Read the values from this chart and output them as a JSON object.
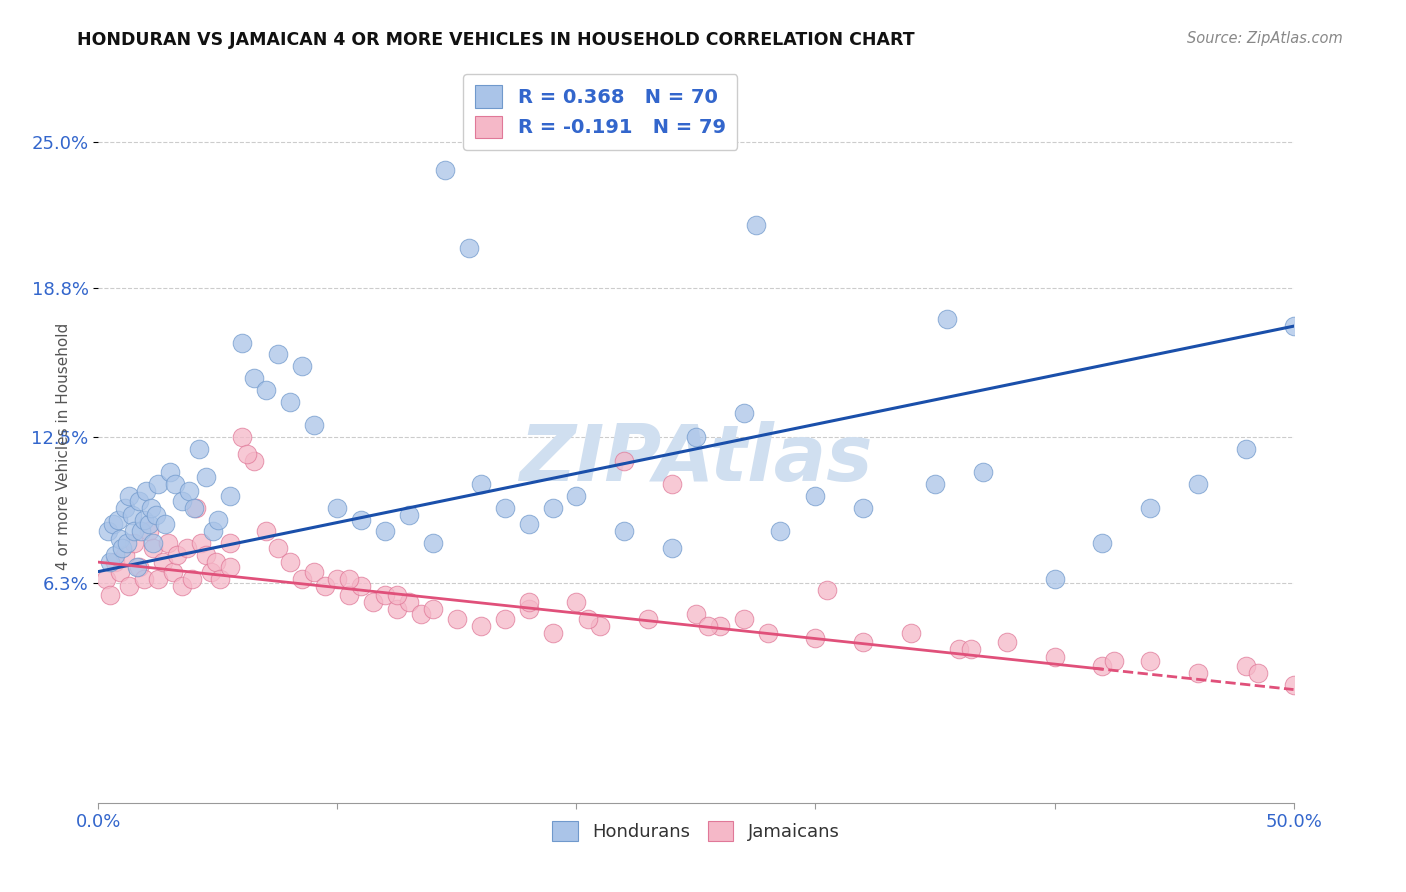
{
  "title": "HONDURAN VS JAMAICAN 4 OR MORE VEHICLES IN HOUSEHOLD CORRELATION CHART",
  "source": "Source: ZipAtlas.com",
  "ylabel": "4 or more Vehicles in Household",
  "ytick_values": [
    25.0,
    18.8,
    12.5,
    6.3
  ],
  "ytick_labels": [
    "25.0%",
    "18.8%",
    "12.5%",
    "6.3%"
  ],
  "xmin": 0.0,
  "xmax": 50.0,
  "ymin": -3.0,
  "ymax": 28.0,
  "honduran_fill": "#aac4e8",
  "honduran_edge": "#7099cc",
  "jamaican_fill": "#f5b8c8",
  "jamaican_edge": "#e07898",
  "honduran_line_color": "#1a4faa",
  "jamaican_line_color": "#e0507a",
  "grid_color": "#cccccc",
  "watermark_color": "#d0dff0",
  "hon_line_x0": 0.0,
  "hon_line_y0": 6.8,
  "hon_line_x1": 50.0,
  "hon_line_y1": 17.2,
  "jam_line_x0": 0.0,
  "jam_line_y0": 7.2,
  "jam_line_x1": 50.0,
  "jam_line_y1": 1.8,
  "jam_solid_end_x": 42.0,
  "scatter_size": 180,
  "scatter_alpha": 0.75,
  "hon_scatter_x": [
    0.4,
    0.5,
    0.6,
    0.7,
    0.8,
    0.9,
    1.0,
    1.1,
    1.2,
    1.3,
    1.4,
    1.5,
    1.6,
    1.7,
    1.8,
    1.9,
    2.0,
    2.1,
    2.2,
    2.3,
    2.4,
    2.5,
    2.8,
    3.0,
    3.2,
    3.5,
    3.8,
    4.0,
    4.2,
    4.5,
    4.8,
    5.0,
    5.5,
    6.0,
    6.5,
    7.0,
    7.5,
    8.0,
    8.5,
    9.0,
    10.0,
    11.0,
    12.0,
    13.0,
    14.0,
    15.5,
    16.0,
    17.0,
    18.0,
    19.0,
    20.0,
    22.0,
    24.0,
    25.0,
    27.0,
    28.5,
    30.0,
    32.0,
    35.0,
    37.0,
    40.0,
    42.0,
    44.0,
    46.0,
    48.0,
    50.0,
    14.5,
    27.5,
    35.5
  ],
  "hon_scatter_y": [
    8.5,
    7.2,
    8.8,
    7.5,
    9.0,
    8.2,
    7.8,
    9.5,
    8.0,
    10.0,
    9.2,
    8.5,
    7.0,
    9.8,
    8.5,
    9.0,
    10.2,
    8.8,
    9.5,
    8.0,
    9.2,
    10.5,
    8.8,
    11.0,
    10.5,
    9.8,
    10.2,
    9.5,
    12.0,
    10.8,
    8.5,
    9.0,
    10.0,
    16.5,
    15.0,
    14.5,
    16.0,
    14.0,
    15.5,
    13.0,
    9.5,
    9.0,
    8.5,
    9.2,
    8.0,
    20.5,
    10.5,
    9.5,
    8.8,
    9.5,
    10.0,
    8.5,
    7.8,
    12.5,
    13.5,
    8.5,
    10.0,
    9.5,
    10.5,
    11.0,
    6.5,
    8.0,
    9.5,
    10.5,
    12.0,
    17.2,
    23.8,
    21.5,
    17.5
  ],
  "jam_scatter_x": [
    0.3,
    0.5,
    0.7,
    0.9,
    1.1,
    1.3,
    1.5,
    1.7,
    1.9,
    2.1,
    2.3,
    2.5,
    2.7,
    2.9,
    3.1,
    3.3,
    3.5,
    3.7,
    3.9,
    4.1,
    4.3,
    4.5,
    4.7,
    4.9,
    5.1,
    5.5,
    6.0,
    6.5,
    7.0,
    7.5,
    8.0,
    8.5,
    9.0,
    9.5,
    10.0,
    10.5,
    11.0,
    11.5,
    12.0,
    12.5,
    13.0,
    13.5,
    14.0,
    15.0,
    16.0,
    17.0,
    18.0,
    19.0,
    20.0,
    21.0,
    22.0,
    23.0,
    24.0,
    25.0,
    26.0,
    27.0,
    28.0,
    30.0,
    32.0,
    34.0,
    36.0,
    38.0,
    40.0,
    42.0,
    44.0,
    46.0,
    48.0,
    50.0,
    6.2,
    12.5,
    20.5,
    25.5,
    30.5,
    36.5,
    42.5,
    48.5,
    5.5,
    10.5,
    18.0
  ],
  "jam_scatter_y": [
    6.5,
    5.8,
    7.2,
    6.8,
    7.5,
    6.2,
    8.0,
    7.0,
    6.5,
    8.5,
    7.8,
    6.5,
    7.2,
    8.0,
    6.8,
    7.5,
    6.2,
    7.8,
    6.5,
    9.5,
    8.0,
    7.5,
    6.8,
    7.2,
    6.5,
    7.0,
    12.5,
    11.5,
    8.5,
    7.8,
    7.2,
    6.5,
    6.8,
    6.2,
    6.5,
    5.8,
    6.2,
    5.5,
    5.8,
    5.2,
    5.5,
    5.0,
    5.2,
    4.8,
    4.5,
    4.8,
    5.2,
    4.2,
    5.5,
    4.5,
    11.5,
    4.8,
    10.5,
    5.0,
    4.5,
    4.8,
    4.2,
    4.0,
    3.8,
    4.2,
    3.5,
    3.8,
    3.2,
    2.8,
    3.0,
    2.5,
    2.8,
    2.0,
    11.8,
    5.8,
    4.8,
    4.5,
    6.0,
    3.5,
    3.0,
    2.5,
    8.0,
    6.5,
    5.5
  ]
}
